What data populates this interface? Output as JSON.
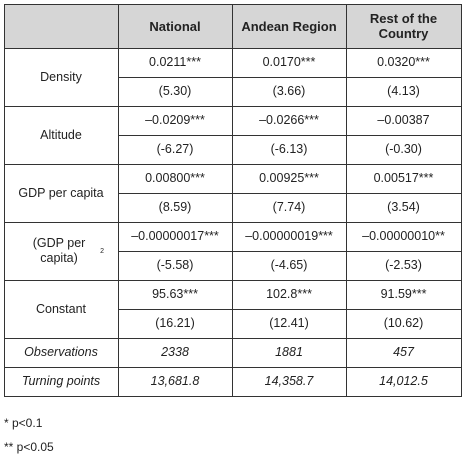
{
  "table": {
    "columns": [
      "National",
      "Andean Region",
      "Rest of the Country"
    ],
    "rows": [
      {
        "label": "Density",
        "coef": [
          "0.0211***",
          "0.0170***",
          "0.0320***"
        ],
        "se": [
          "(5.30)",
          "(3.66)",
          "(4.13)"
        ]
      },
      {
        "label": "Altitude",
        "coef": [
          "–0.0209***",
          "–0.0266***",
          "–0.00387"
        ],
        "se": [
          "(-6.27)",
          "(-6.13)",
          "(-0.30)"
        ]
      },
      {
        "label": "GDP per capita",
        "coef": [
          "0.00800***",
          "0.00925***",
          "0.00517***"
        ],
        "se": [
          "(8.59)",
          "(7.74)",
          "(3.54)"
        ]
      },
      {
        "label": "(GDP per capita)",
        "sup": "2",
        "coef": [
          "–0.00000017***",
          "–0.00000019***",
          "–0.00000010**"
        ],
        "se": [
          "(-5.58)",
          "(-4.65)",
          "(-2.53)"
        ]
      },
      {
        "label": "Constant",
        "coef": [
          "95.63***",
          "102.8***",
          "91.59***"
        ],
        "se": [
          "(16.21)",
          "(12.41)",
          "(10.62)"
        ]
      }
    ],
    "summary": [
      {
        "label": "Observations",
        "values": [
          "2338",
          "1881",
          "457"
        ]
      },
      {
        "label": "Turning points",
        "values": [
          "13,681.8",
          "14,358.7",
          "14,012.5"
        ]
      }
    ]
  },
  "footnotes": [
    "* p<0.1",
    "** p<0.05"
  ]
}
